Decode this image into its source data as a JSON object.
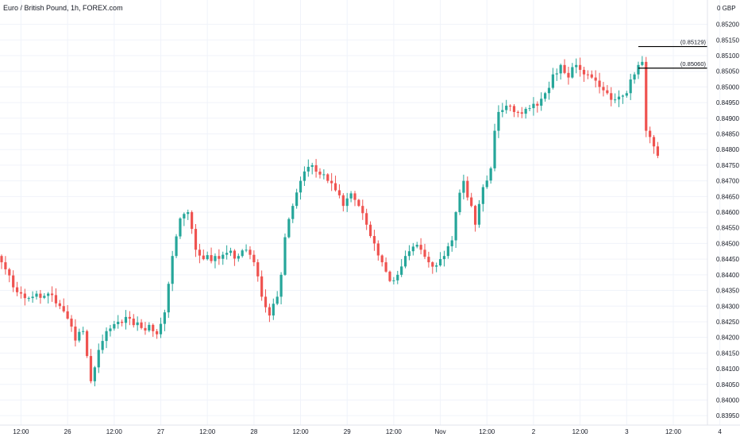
{
  "header": {
    "title": "Euro / British Pound, 1h, FOREX.com",
    "currency_label": "0  GBP",
    "currency_suffix": "0"
  },
  "colors": {
    "up": "#26a69a",
    "down": "#ef5350",
    "grid": "#f0f3fa",
    "axis_text": "#131722",
    "level_line": "#000000"
  },
  "chart_data": {
    "type": "candlestick",
    "ylim": [
      0.8392,
      0.8527
    ],
    "y_ticks": [
      "0.85200",
      "0.85150",
      "0.85100",
      "0.85050",
      "0.85000",
      "0.84950",
      "0.84900",
      "0.84850",
      "0.84800",
      "0.84750",
      "0.84700",
      "0.84650",
      "0.84600",
      "0.84550",
      "0.84500",
      "0.84450",
      "0.84400",
      "0.84350",
      "0.84300",
      "0.84250",
      "0.84200",
      "0.84150",
      "0.84100",
      "0.84050",
      "0.84000",
      "0.83950"
    ],
    "x_ticks": [
      {
        "label": "12:00",
        "hour": 5
      },
      {
        "label": "26",
        "hour": 17
      },
      {
        "label": "12:00",
        "hour": 29
      },
      {
        "label": "27",
        "hour": 41
      },
      {
        "label": "12:00",
        "hour": 53
      },
      {
        "label": "28",
        "hour": 65
      },
      {
        "label": "12:00",
        "hour": 77
      },
      {
        "label": "29",
        "hour": 89
      },
      {
        "label": "12:00",
        "hour": 101
      },
      {
        "label": "Nov",
        "hour": 113
      },
      {
        "label": "12:00",
        "hour": 125
      },
      {
        "label": "2",
        "hour": 137
      },
      {
        "label": "12:00",
        "hour": 149
      },
      {
        "label": "3",
        "hour": 161
      },
      {
        "label": "12:00",
        "hour": 173
      },
      {
        "label": "4",
        "hour": 185
      }
    ],
    "levels": [
      {
        "label": "(0.85129)",
        "value": 0.85129,
        "from_hour": 164
      },
      {
        "label": "(0.85060)",
        "value": 0.8506,
        "from_hour": 164
      }
    ],
    "anchors": [
      [
        0,
        0.8444
      ],
      [
        3,
        0.8436
      ],
      [
        5,
        0.8434
      ],
      [
        8,
        0.8433
      ],
      [
        12,
        0.8434
      ],
      [
        15,
        0.843
      ],
      [
        17,
        0.8426
      ],
      [
        19,
        0.8419
      ],
      [
        21,
        0.8422
      ],
      [
        23,
        0.8406
      ],
      [
        25,
        0.8416
      ],
      [
        27,
        0.8422
      ],
      [
        30,
        0.8425
      ],
      [
        33,
        0.8426
      ],
      [
        36,
        0.8423
      ],
      [
        38,
        0.8424
      ],
      [
        40,
        0.8421
      ],
      [
        42,
        0.8428
      ],
      [
        44,
        0.8446
      ],
      [
        46,
        0.8458
      ],
      [
        48,
        0.846
      ],
      [
        50,
        0.8448
      ],
      [
        52,
        0.8445
      ],
      [
        55,
        0.8446
      ],
      [
        58,
        0.8447
      ],
      [
        61,
        0.8446
      ],
      [
        63,
        0.8448
      ],
      [
        65,
        0.8444
      ],
      [
        67,
        0.8433
      ],
      [
        69,
        0.8427
      ],
      [
        71,
        0.8433
      ],
      [
        72,
        0.844
      ],
      [
        73,
        0.8452
      ],
      [
        75,
        0.8462
      ],
      [
        77,
        0.847
      ],
      [
        78,
        0.8473
      ],
      [
        80,
        0.8475
      ],
      [
        82,
        0.8472
      ],
      [
        84,
        0.847
      ],
      [
        86,
        0.8467
      ],
      [
        88,
        0.8462
      ],
      [
        90,
        0.8466
      ],
      [
        92,
        0.8462
      ],
      [
        94,
        0.8456
      ],
      [
        96,
        0.845
      ],
      [
        98,
        0.8444
      ],
      [
        100,
        0.8438
      ],
      [
        102,
        0.844
      ],
      [
        104,
        0.8446
      ],
      [
        106,
        0.8449
      ],
      [
        108,
        0.8448
      ],
      [
        110,
        0.8444
      ],
      [
        112,
        0.8443
      ],
      [
        114,
        0.8446
      ],
      [
        116,
        0.8451
      ],
      [
        117,
        0.846
      ],
      [
        119,
        0.847
      ],
      [
        121,
        0.8462
      ],
      [
        122,
        0.8456
      ],
      [
        124,
        0.8468
      ],
      [
        126,
        0.8474
      ],
      [
        127,
        0.8486
      ],
      [
        128,
        0.8492
      ],
      [
        130,
        0.8494
      ],
      [
        132,
        0.8492
      ],
      [
        135,
        0.8493
      ],
      [
        138,
        0.8494
      ],
      [
        140,
        0.8498
      ],
      [
        142,
        0.8504
      ],
      [
        144,
        0.8507
      ],
      [
        146,
        0.8503
      ],
      [
        148,
        0.8507
      ],
      [
        150,
        0.8504
      ],
      [
        152,
        0.8503
      ],
      [
        154,
        0.85
      ],
      [
        156,
        0.8498
      ],
      [
        158,
        0.8496
      ],
      [
        161,
        0.8498
      ],
      [
        163,
        0.8504
      ],
      [
        164,
        0.8507
      ],
      [
        165,
        0.8508
      ],
      [
        166,
        0.8486
      ],
      [
        167,
        0.8484
      ],
      [
        168,
        0.8481
      ],
      [
        169,
        0.8478
      ]
    ]
  }
}
